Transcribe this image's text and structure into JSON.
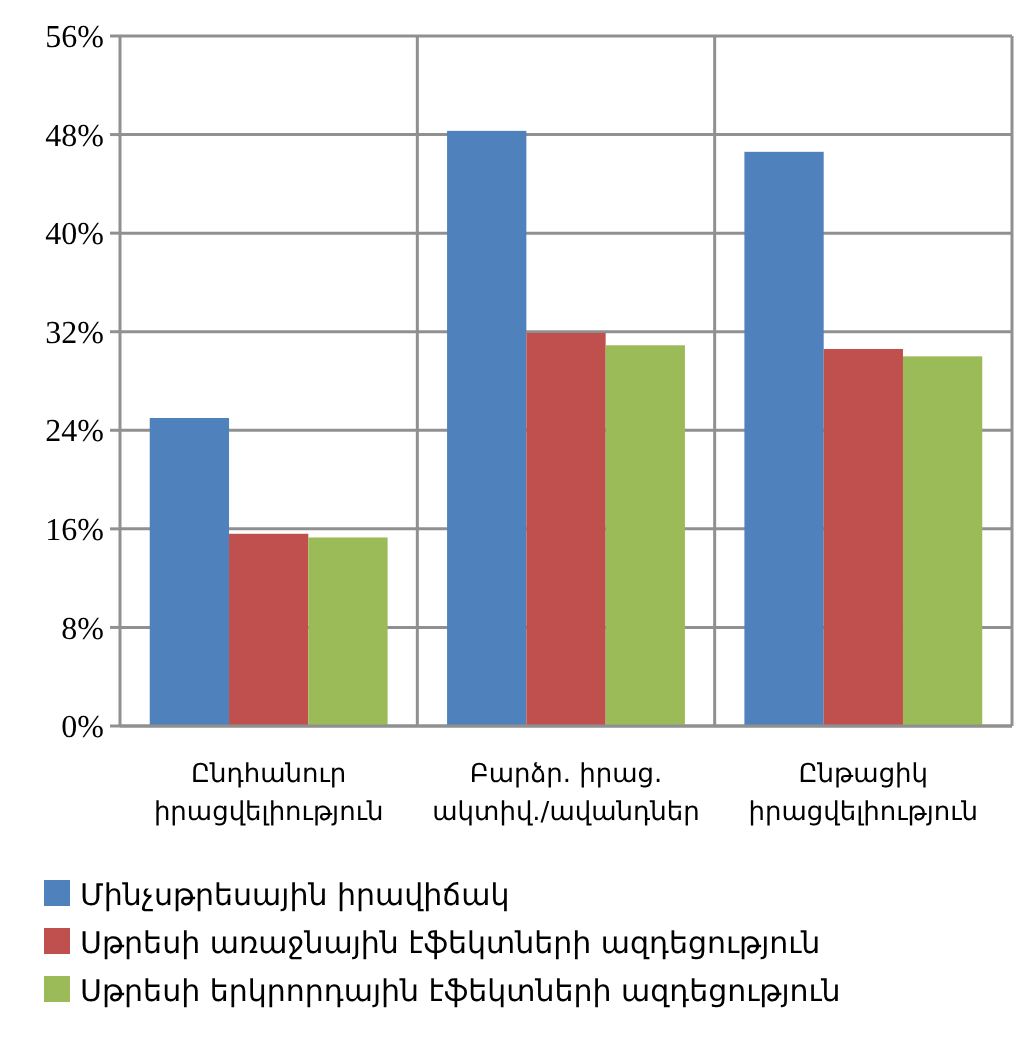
{
  "chart_data": {
    "type": "bar",
    "categories": [
      "Ընդհանուր իրացվելիություն",
      "Բարձր. իրաց. ակտիվ./ավանդներ",
      "Ընթացիկ իրացվելիություն"
    ],
    "series": [
      {
        "name": "Մինչսթրեսային իրավիճակ",
        "color": "#4f81bd",
        "values": [
          25,
          48.3,
          46.6
        ]
      },
      {
        "name": "Սթրեսի առաջնային էֆեկտների ազդեցություն",
        "color": "#c0504d",
        "values": [
          15.6,
          31.9,
          30.6
        ]
      },
      {
        "name": "Սթրեսի երկրորդային էֆեկտների ազդեցություն",
        "color": "#9bbb59",
        "values": [
          15.3,
          30.9,
          30
        ]
      }
    ],
    "ylim": [
      0,
      56
    ],
    "yticks": [
      {
        "value": 0,
        "label": "0%"
      },
      {
        "value": 8,
        "label": "8%"
      },
      {
        "value": 16,
        "label": "16%"
      },
      {
        "value": 24,
        "label": "24%"
      },
      {
        "value": 32,
        "label": "32%"
      },
      {
        "value": 40,
        "label": "40%"
      },
      {
        "value": 48,
        "label": "48%"
      },
      {
        "value": 56,
        "label": "56%"
      }
    ],
    "grid": true,
    "legend": "bottom"
  }
}
